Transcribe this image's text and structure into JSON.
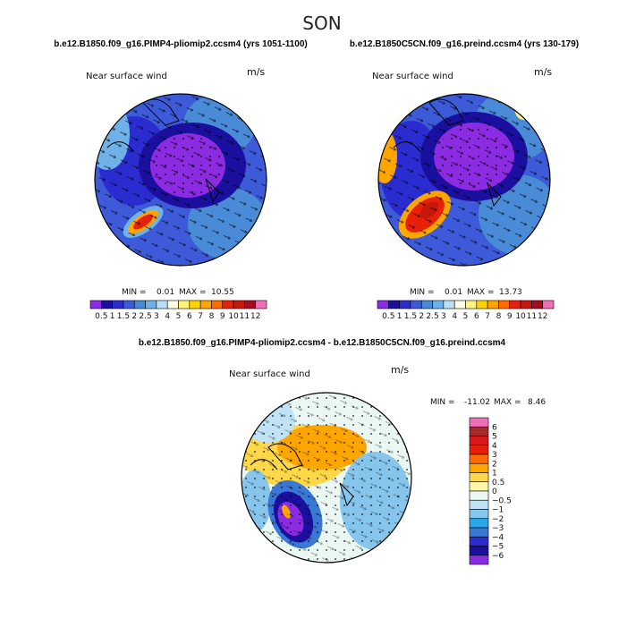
{
  "figure": {
    "season": "SON"
  },
  "chart_data": [
    {
      "type": "heatmap",
      "projection": "north polar stereographic",
      "case": "b.e12.B1850.f09_g16.PIMP4-pliomip2.ccsm4 (yrs 1051-1100)",
      "title": "Near surface wind",
      "units": "m/s",
      "min_label": "MIN =",
      "min": "0.01",
      "max_label": "MAX =",
      "max": "10.55",
      "colorbar": {
        "orientation": "horizontal",
        "tick_labels": [
          "0.5",
          "1",
          "1.5",
          "2",
          "2.5",
          "3",
          "4",
          "5",
          "6",
          "7",
          "8",
          "9",
          "10",
          "11",
          "12"
        ],
        "levels": [
          0.5,
          1,
          1.5,
          2,
          2.5,
          3,
          4,
          5,
          6,
          7,
          8,
          9,
          10,
          11,
          12
        ],
        "colors": [
          "#8b2be2",
          "#1a0f9e",
          "#2a2ccf",
          "#3d5bd9",
          "#4a8bd8",
          "#6fb1e8",
          "#b8e0f2",
          "#fffde0",
          "#fff27a",
          "#ffd300",
          "#ffa500",
          "#ff6a00",
          "#e8200a",
          "#c4180b",
          "#a30d24",
          "#ee6fb8"
        ]
      }
    },
    {
      "type": "heatmap",
      "projection": "north polar stereographic",
      "case": "b.e12.B1850C5CN.f09_g16.preind.ccsm4 (yrs 130-179)",
      "title": "Near surface wind",
      "units": "m/s",
      "min_label": "MIN =",
      "min": "0.01",
      "max_label": "MAX =",
      "max": "13.73",
      "colorbar": {
        "orientation": "horizontal",
        "tick_labels": [
          "0.5",
          "1",
          "1.5",
          "2",
          "2.5",
          "3",
          "4",
          "5",
          "6",
          "7",
          "8",
          "9",
          "10",
          "11",
          "12"
        ],
        "levels": [
          0.5,
          1,
          1.5,
          2,
          2.5,
          3,
          4,
          5,
          6,
          7,
          8,
          9,
          10,
          11,
          12
        ],
        "colors": [
          "#8b2be2",
          "#1a0f9e",
          "#2a2ccf",
          "#3d5bd9",
          "#4a8bd8",
          "#6fb1e8",
          "#b8e0f2",
          "#fffde0",
          "#fff27a",
          "#ffd300",
          "#ffa500",
          "#ff6a00",
          "#e8200a",
          "#c4180b",
          "#a30d24",
          "#ee6fb8"
        ]
      }
    },
    {
      "type": "heatmap",
      "projection": "north polar stereographic",
      "case": "b.e12.B1850.f09_g16.PIMP4-pliomip2.ccsm4 - b.e12.B1850C5CN.f09_g16.preind.ccsm4",
      "title": "Near surface wind",
      "units": "m/s",
      "min_label": "MIN =",
      "min": "-11.02",
      "max_label": "MAX =",
      "max": "8.46",
      "colorbar": {
        "orientation": "vertical",
        "tick_labels": [
          "6",
          "5",
          "4",
          "3",
          "2",
          "1",
          "0.5",
          "0",
          "−0.5",
          "−1",
          "−2",
          "−3",
          "−4",
          "−5",
          "−6"
        ],
        "levels": [
          6,
          5,
          4,
          3,
          2,
          1,
          0.5,
          0,
          -0.5,
          -1,
          -2,
          -3,
          -4,
          -5,
          -6
        ],
        "colors": [
          "#ee6fb8",
          "#a52a2a",
          "#d7191c",
          "#e8200a",
          "#ff6a00",
          "#ffa500",
          "#ffd84a",
          "#fff7a8",
          "#eaf7f2",
          "#bfe3f4",
          "#87c6ec",
          "#2ba7e8",
          "#3a78d6",
          "#2a2ccf",
          "#1a0f9e",
          "#8b2be2"
        ]
      }
    }
  ]
}
